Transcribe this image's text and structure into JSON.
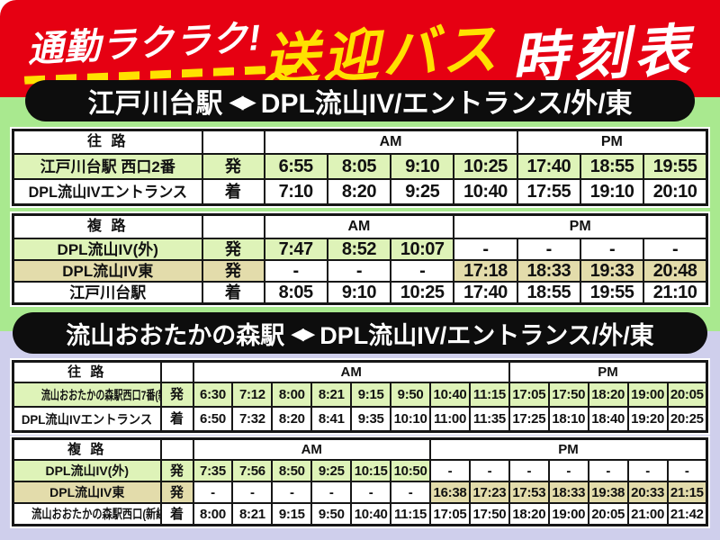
{
  "header": {
    "catchphrase": "通勤ラクラク!",
    "title_accent": "送迎バス",
    "title_rest": "時刻表"
  },
  "colors": {
    "banner_red": "#e60012",
    "accent_yellow": "#ffe100",
    "route_bar_black": "#0d0d0d",
    "section1_bg": "#a9e98f",
    "section2_bg": "#cfcfec",
    "highlight_green": "#def3b8",
    "highlight_tan": "#e3dcab"
  },
  "sections": [
    {
      "route": {
        "from": "江戸川台駅",
        "arrows": "◀▶",
        "to": "DPL流山IV/エントランス/外/東"
      },
      "tables": [
        {
          "direction_label": "往 路",
          "am_label": "AM",
          "pm_label": "PM",
          "am_span": 4,
          "pm_span": 3,
          "rows": [
            {
              "station": "江戸川台駅 西口2番",
              "mark": "発",
              "row_style": "green",
              "times": [
                "6:55",
                "8:05",
                "9:10",
                "10:25",
                "17:40",
                "18:55",
                "19:55"
              ]
            },
            {
              "station": "DPL流山IVエントランス",
              "mark": "着",
              "row_style": "white",
              "times": [
                "7:10",
                "8:20",
                "9:25",
                "10:40",
                "17:55",
                "19:10",
                "20:10"
              ]
            }
          ]
        },
        {
          "direction_label": "複 路",
          "am_label": "AM",
          "pm_label": "PM",
          "am_span": 3,
          "pm_span": 4,
          "rows": [
            {
              "station": "DPL流山IV(外)",
              "mark": "発",
              "row_style": "green",
              "times": [
                "7:47",
                "8:52",
                "10:07",
                "-",
                "-",
                "-",
                "-"
              ]
            },
            {
              "station": "DPL流山IV東",
              "mark": "発",
              "row_style": "tan",
              "times": [
                "-",
                "-",
                "-",
                "17:18",
                "18:33",
                "19:33",
                "20:48"
              ]
            },
            {
              "station": "江戸川台駅",
              "mark": "着",
              "row_style": "white",
              "times": [
                "8:05",
                "9:10",
                "10:25",
                "17:40",
                "18:55",
                "19:55",
                "21:10"
              ]
            }
          ]
        }
      ]
    },
    {
      "route": {
        "from": "流山おおたかの森駅",
        "arrows": "◀▶",
        "to": "DPL流山IV/エントランス/外/東"
      },
      "tables": [
        {
          "direction_label": "往 路",
          "am_label": "AM",
          "pm_label": "PM",
          "am_span": 8,
          "pm_span": 5,
          "rows": [
            {
              "station": "流山おおたかの森駅西口7番(新線)",
              "mark": "発",
              "row_style": "green",
              "times": [
                "6:30",
                "7:12",
                "8:00",
                "8:21",
                "9:15",
                "9:50",
                "10:40",
                "11:15",
                "17:05",
                "17:50",
                "18:20",
                "19:00",
                "20:05"
              ]
            },
            {
              "station": "DPL流山IVエントランス",
              "mark": "着",
              "row_style": "white",
              "times": [
                "6:50",
                "7:32",
                "8:20",
                "8:41",
                "9:35",
                "10:10",
                "11:00",
                "11:35",
                "17:25",
                "18:10",
                "18:40",
                "19:20",
                "20:25"
              ]
            }
          ]
        },
        {
          "direction_label": "複 路",
          "am_label": "AM",
          "pm_label": "PM",
          "am_span": 6,
          "pm_span": 7,
          "rows": [
            {
              "station": "DPL流山IV(外)",
              "mark": "発",
              "row_style": "green",
              "times": [
                "7:35",
                "7:56",
                "8:50",
                "9:25",
                "10:15",
                "10:50",
                "-",
                "-",
                "-",
                "-",
                "-",
                "-",
                "-"
              ]
            },
            {
              "station": "DPL流山IV東",
              "mark": "発",
              "row_style": "tan",
              "times": [
                "-",
                "-",
                "-",
                "-",
                "-",
                "-",
                "16:38",
                "17:23",
                "17:53",
                "18:33",
                "19:38",
                "20:33",
                "21:15"
              ]
            },
            {
              "station": "流山おおたかの森駅西口(新線)",
              "mark": "着",
              "row_style": "white",
              "times": [
                "8:00",
                "8:21",
                "9:15",
                "9:50",
                "10:40",
                "11:15",
                "17:05",
                "17:50",
                "18:20",
                "19:00",
                "20:05",
                "21:00",
                "21:42"
              ]
            }
          ]
        }
      ]
    }
  ]
}
